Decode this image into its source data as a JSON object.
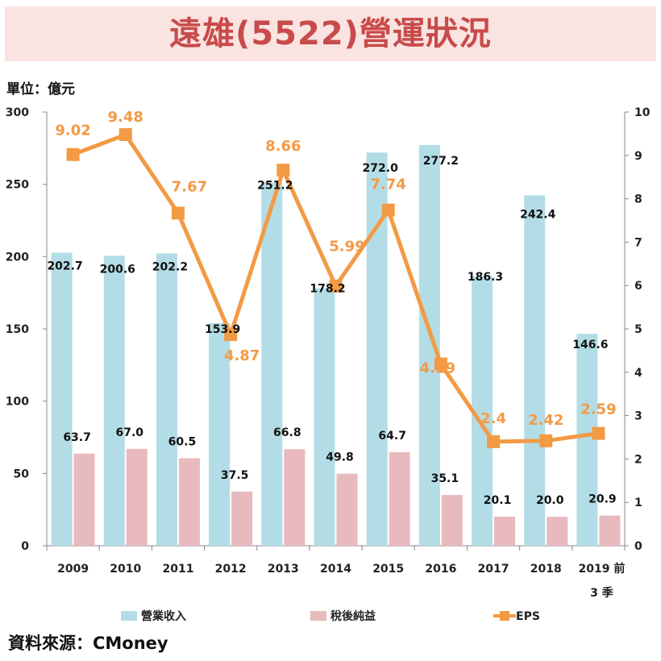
{
  "title": "遠雄(5522)營運狀況",
  "unit_label": "單位：億元",
  "source": "資料來源：CMoney",
  "colors": {
    "revenue": "#b3dde6",
    "net_income": "#e8b9bd",
    "eps": "#f39a45",
    "title": "#c94a4a",
    "title_bg": "#f9e4e1"
  },
  "chart_data": {
    "type": "bar",
    "categories": [
      "2009",
      "2010",
      "2011",
      "2012",
      "2013",
      "2014",
      "2015",
      "2016",
      "2017",
      "2018",
      "2019 前 3 季"
    ],
    "category_lines": [
      [
        "2009"
      ],
      [
        "2010"
      ],
      [
        "2011"
      ],
      [
        "2012"
      ],
      [
        "2013"
      ],
      [
        "2014"
      ],
      [
        "2015"
      ],
      [
        "2016"
      ],
      [
        "2017"
      ],
      [
        "2018"
      ],
      [
        "2019 前",
        "3 季"
      ]
    ],
    "series": [
      {
        "name": "營業收入",
        "type": "bar",
        "axis": "left",
        "values": [
          202.7,
          200.6,
          202.2,
          153.9,
          251.2,
          178.2,
          272.0,
          277.2,
          186.3,
          242.4,
          146.6
        ],
        "labels": [
          "202.7",
          "200.6",
          "202.2",
          "153.9",
          "251.2",
          "178.2",
          "272.0",
          "277.2",
          "186.3",
          "242.4",
          "146.6"
        ]
      },
      {
        "name": "稅後純益",
        "type": "bar",
        "axis": "left",
        "values": [
          63.7,
          67.0,
          60.5,
          37.5,
          66.8,
          49.8,
          64.7,
          35.1,
          20.1,
          20.0,
          20.9
        ],
        "labels": [
          "63.7",
          "67.0",
          "60.5",
          "37.5",
          "66.8",
          "49.8",
          "64.7",
          "35.1",
          "20.1",
          "20.0",
          "20.9"
        ]
      },
      {
        "name": "EPS",
        "type": "line",
        "axis": "right",
        "values": [
          9.02,
          9.48,
          7.67,
          4.87,
          8.66,
          5.99,
          7.74,
          4.19,
          2.4,
          2.42,
          2.59
        ],
        "labels": [
          "9.02",
          "9.48",
          "7.67",
          "4.87",
          "8.66",
          "5.99",
          "7.74",
          "4.19",
          "2.4",
          "2.42",
          "2.59"
        ]
      }
    ],
    "y_left": {
      "min": 0,
      "max": 300,
      "ticks": [
        "0",
        "50",
        "100",
        "150",
        "200",
        "250",
        "300"
      ]
    },
    "y_right": {
      "min": 0,
      "max": 10,
      "ticks": [
        "0",
        "1",
        "2",
        "3",
        "4",
        "5",
        "6",
        "7",
        "8",
        "9",
        "10"
      ]
    },
    "legend_position": "bottom",
    "grid": false
  }
}
